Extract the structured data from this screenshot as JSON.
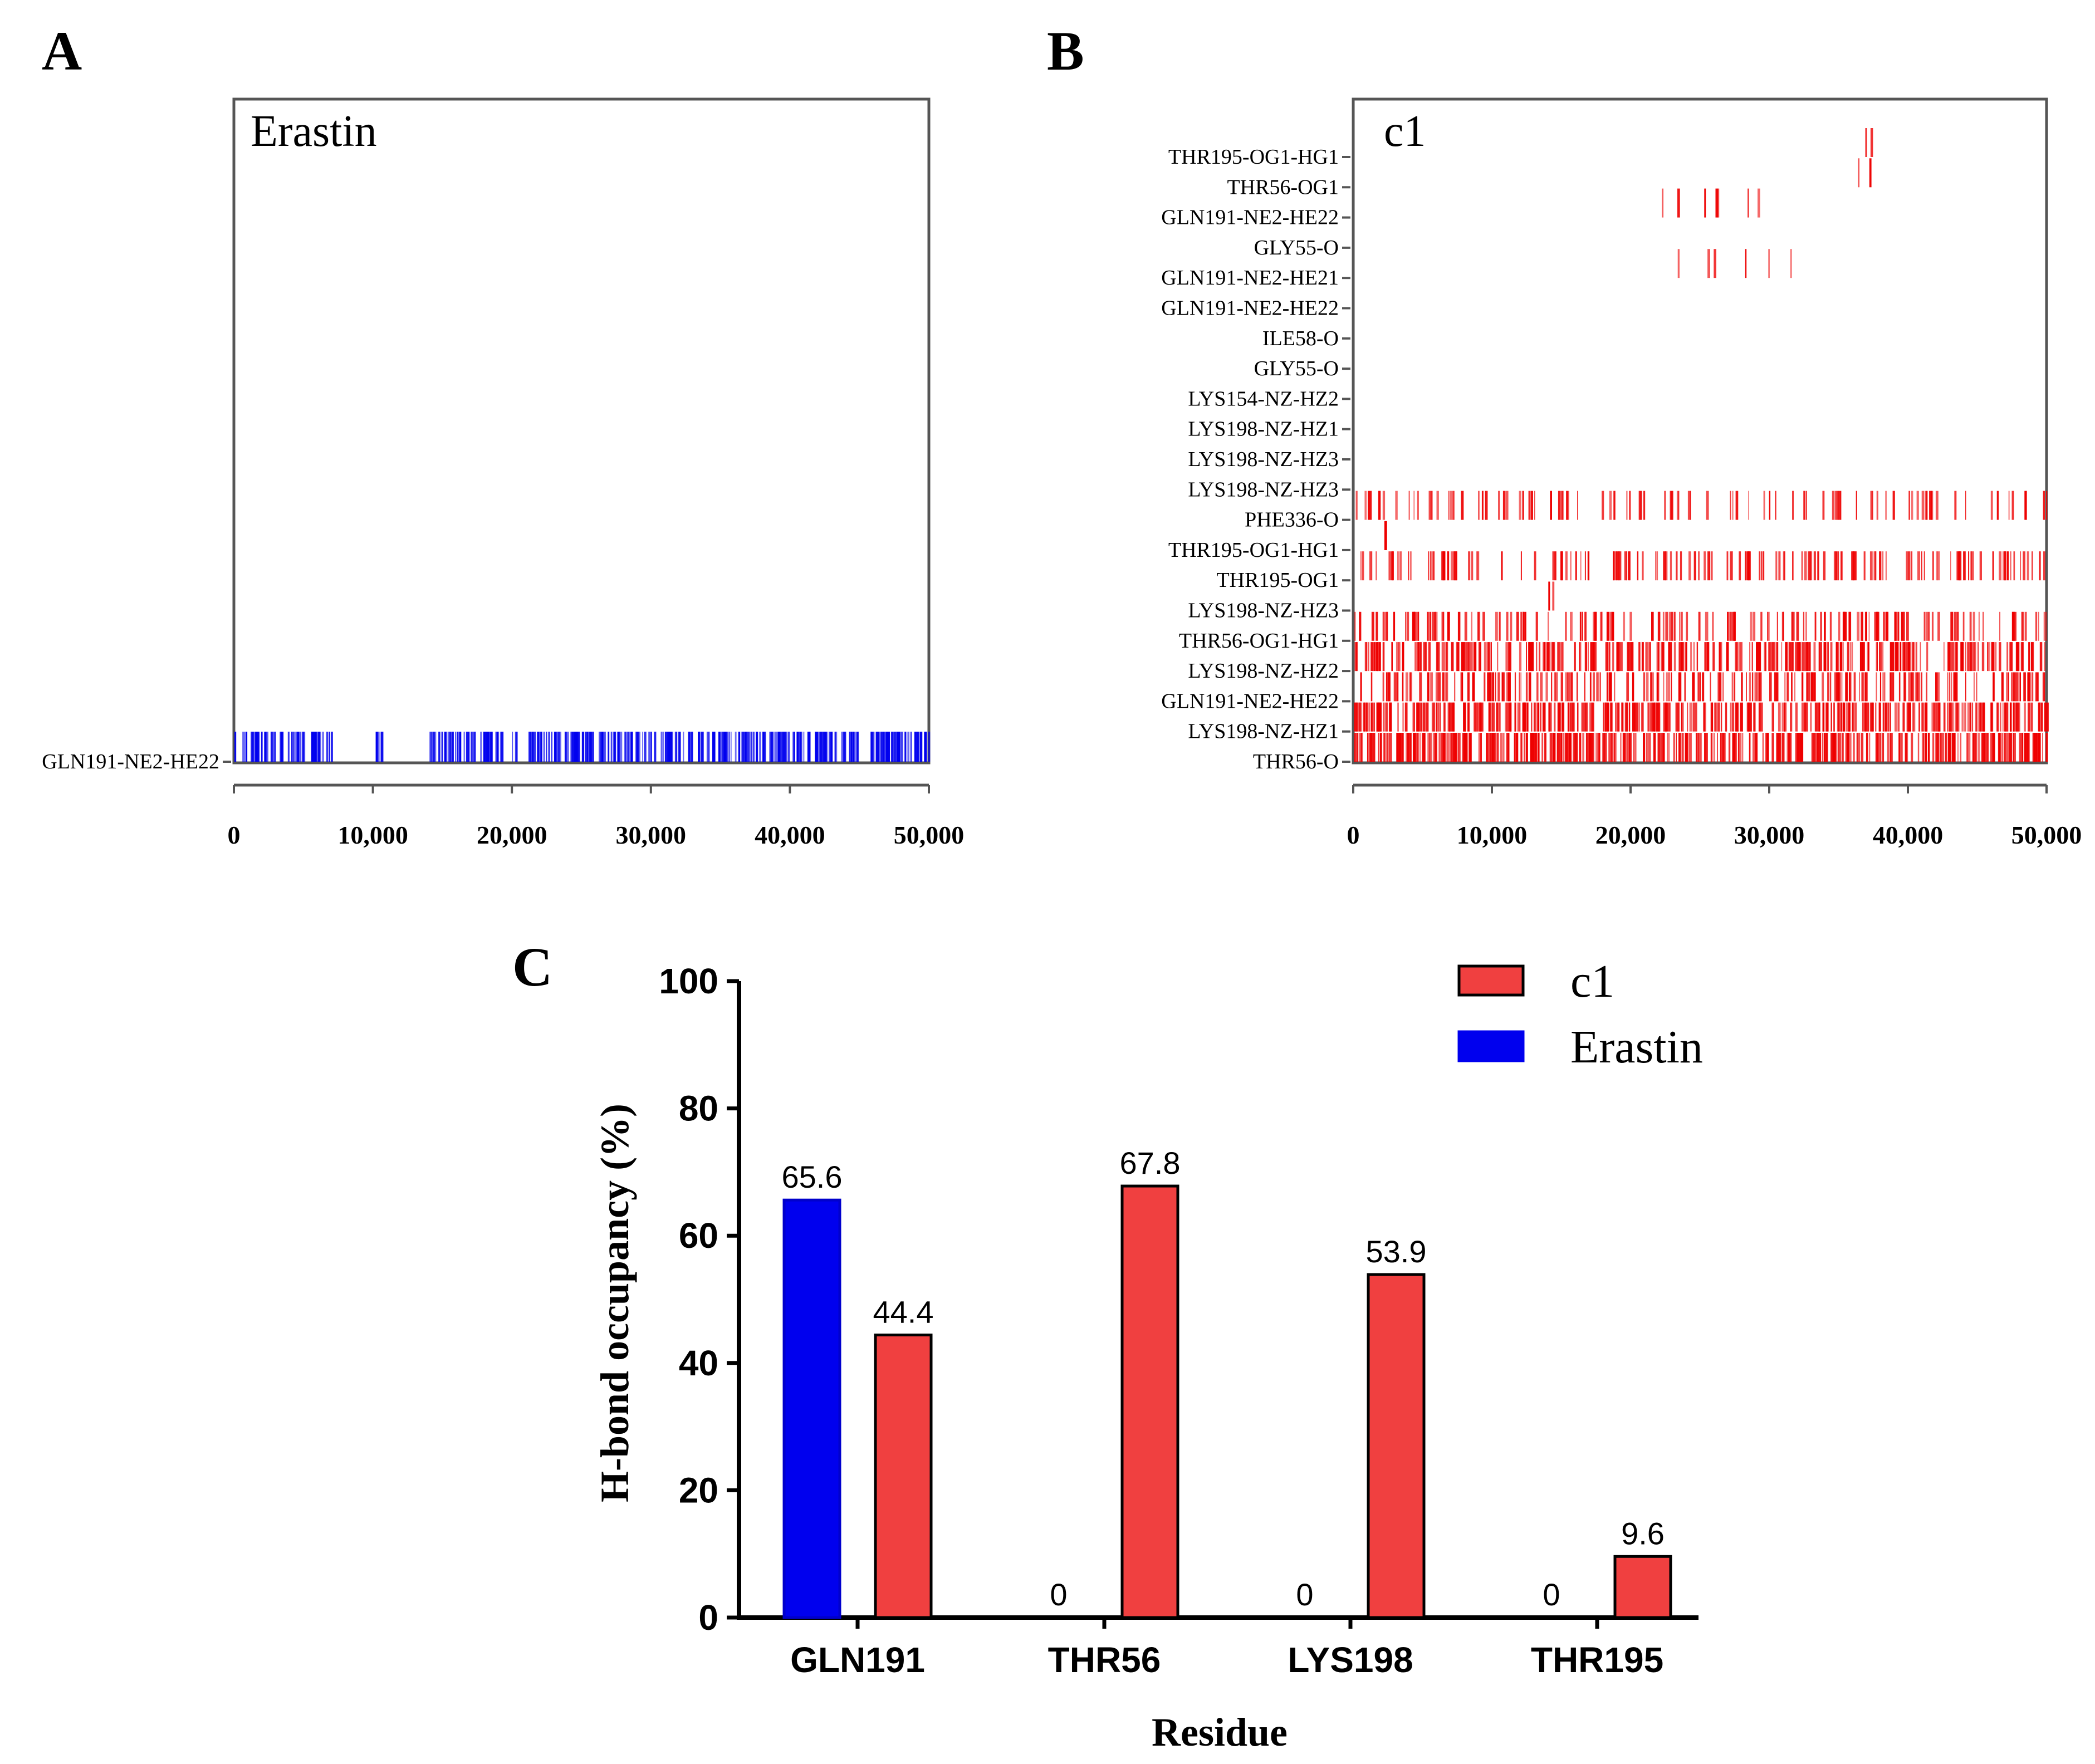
{
  "panel_labels": {
    "a": "A",
    "b": "B",
    "c": "C"
  },
  "colors": {
    "erastin": "#0000ee",
    "c1": "#f04040",
    "c1_strip": "#ee0000",
    "axis": "#000000",
    "frame": "#555555"
  },
  "chart_data": [
    {
      "id": "A",
      "type": "heatmap",
      "title": "Erastin",
      "xlim": [
        0,
        50000
      ],
      "xticks": [
        "0",
        "10,000",
        "20,000",
        "30,000",
        "40,000",
        "50,000"
      ],
      "rows": [
        "GLN191-NE2-HE22"
      ],
      "row_occupancy": [
        0.656
      ],
      "row_segments": [
        [
          [
            0,
            7000
          ],
          [
            10000,
            10800
          ],
          [
            14000,
            50000
          ]
        ]
      ]
    },
    {
      "id": "B",
      "type": "heatmap",
      "title": "c1",
      "xlim": [
        0,
        50000
      ],
      "xticks": [
        "0",
        "10,000",
        "20,000",
        "30,000",
        "40,000",
        "50,000"
      ],
      "rows": [
        "THR195-OG1-HG1",
        "THR56-OG1",
        "GLN191-NE2-HE22",
        "GLY55-O",
        "GLN191-NE2-HE21",
        "GLN191-NE2-HE22",
        "ILE58-O",
        "GLY55-O",
        "LYS154-NZ-HZ2",
        "LYS198-NZ-HZ1",
        "LYS198-NZ-HZ3",
        "LYS198-NZ-HZ3",
        "PHE336-O",
        "THR195-OG1-HG1",
        "THR195-OG1",
        "LYS198-NZ-HZ3",
        "THR56-OG1-HG1",
        "LYS198-NZ-HZ2",
        "GLN191-NE2-HE22",
        "LYS198-NZ-HZ1",
        "THR56-O"
      ],
      "row_occupancy": [
        0.002,
        0.005,
        0.02,
        0,
        0.01,
        0,
        0,
        0,
        0,
        0,
        0,
        0,
        0.12,
        0.01,
        0.2,
        0.02,
        0.22,
        0.42,
        0.3,
        0.5,
        0.678
      ],
      "row_segments": [
        [
          [
            36900,
            37400
          ]
        ],
        [
          [
            36200,
            38500
          ]
        ],
        [
          [
            20500,
            30500
          ]
        ],
        [],
        [
          [
            22500,
            33500
          ]
        ],
        [],
        [],
        [],
        [],
        [],
        [],
        [],
        [
          [
            0,
            50000
          ]
        ],
        [
          [
            2000,
            2300
          ]
        ],
        [
          [
            300,
            50000
          ]
        ],
        [
          [
            14000,
            14400
          ]
        ],
        [
          [
            0,
            50000
          ]
        ],
        [
          [
            0,
            50000
          ]
        ],
        [
          [
            0,
            50000
          ]
        ],
        [
          [
            0,
            50000
          ]
        ],
        [
          [
            0,
            50000
          ]
        ]
      ]
    },
    {
      "id": "C",
      "type": "bar",
      "xlabel": "Residue",
      "ylabel": "H-bond occupancy (%)",
      "ylim": [
        0,
        100
      ],
      "yticks": [
        "0",
        "20",
        "40",
        "60",
        "80",
        "100"
      ],
      "categories": [
        "GLN191",
        "THR56",
        "LYS198",
        "THR195"
      ],
      "series": [
        {
          "name": "Erastin",
          "values": [
            65.6,
            0,
            0,
            0
          ],
          "labels": [
            "65.6",
            "0",
            "0",
            "0"
          ]
        },
        {
          "name": "c1",
          "values": [
            44.4,
            67.8,
            53.9,
            9.6
          ],
          "labels": [
            "44.4",
            "67.8",
            "53.9",
            "9.6"
          ]
        }
      ],
      "legend": {
        "entries": [
          "c1",
          "Erastin"
        ],
        "position": "top-right"
      }
    }
  ]
}
